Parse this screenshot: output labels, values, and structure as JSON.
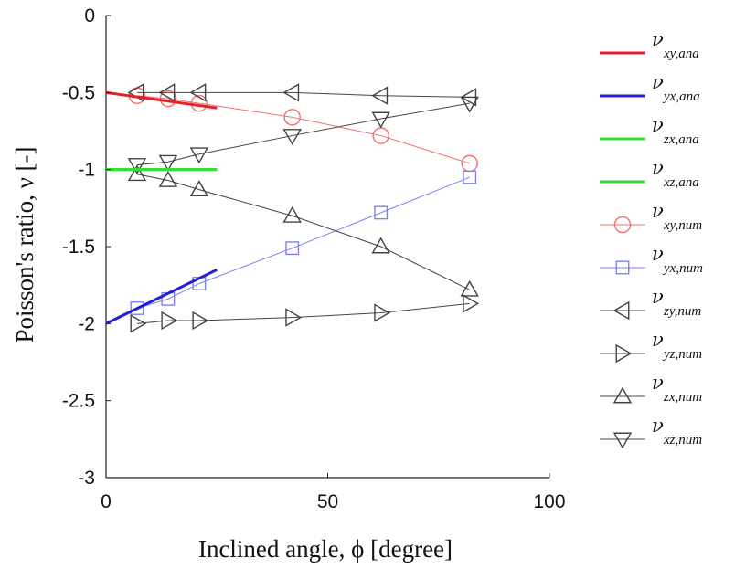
{
  "chart_data": {
    "type": "line",
    "title": "",
    "xlabel": "Inclined angle, ϕ [degree]",
    "ylabel": "Poisson's ratio, ν [-]",
    "xlim": [
      0,
      100
    ],
    "ylim": [
      -3,
      0
    ],
    "xticks": [
      0,
      50,
      100
    ],
    "yticks": [
      0,
      -0.5,
      -1,
      -1.5,
      -2,
      -2.5,
      -3
    ],
    "ytick_labels": [
      "0",
      "-0.5",
      "-1",
      "-1.5",
      "-2",
      "-2.5",
      "-3"
    ],
    "grid": false,
    "legend_position": "right, outside",
    "series": [
      {
        "symbol": "ν",
        "subscript": "xy,ana",
        "color": "#e8202a",
        "marker": "none",
        "line_width": 3,
        "x": [
          0,
          25
        ],
        "y": [
          -0.5,
          -0.6
        ]
      },
      {
        "symbol": "ν",
        "subscript": "yx,ana",
        "color": "#2020d0",
        "marker": "none",
        "line_width": 3,
        "x": [
          0,
          25
        ],
        "y": [
          -2.0,
          -1.65
        ]
      },
      {
        "symbol": "ν",
        "subscript": "zx,ana",
        "color": "#33dd33",
        "marker": "none",
        "line_width": 3,
        "x": [
          0,
          25
        ],
        "y": [
          -1.0,
          -1.0
        ]
      },
      {
        "symbol": "ν",
        "subscript": "xz,ana",
        "color": "#33dd33",
        "marker": "none",
        "line_width": 3,
        "x": [
          0,
          25
        ],
        "y": [
          -1.0,
          -1.0
        ]
      },
      {
        "symbol": "ν",
        "subscript": "xy,num",
        "color": "#f07070",
        "marker": "circle",
        "line_width": 1,
        "x": [
          7,
          14,
          21,
          42,
          62,
          82
        ],
        "y": [
          -0.52,
          -0.54,
          -0.57,
          -0.66,
          -0.78,
          -0.96
        ]
      },
      {
        "symbol": "ν",
        "subscript": "yx,num",
        "color": "#8080f0",
        "marker": "square",
        "line_width": 1,
        "x": [
          7,
          14,
          21,
          42,
          62,
          82
        ],
        "y": [
          -1.9,
          -1.84,
          -1.74,
          -1.51,
          -1.28,
          -1.05
        ]
      },
      {
        "symbol": "ν",
        "subscript": "zy,num",
        "color": "#444444",
        "marker": "triangle-left",
        "line_width": 1,
        "x": [
          7,
          14,
          21,
          42,
          62,
          82
        ],
        "y": [
          -0.5,
          -0.5,
          -0.5,
          -0.5,
          -0.52,
          -0.53
        ]
      },
      {
        "symbol": "ν",
        "subscript": "yz,num",
        "color": "#444444",
        "marker": "triangle-right",
        "line_width": 1,
        "x": [
          7,
          14,
          21,
          42,
          62,
          82
        ],
        "y": [
          -2.0,
          -1.98,
          -1.98,
          -1.96,
          -1.93,
          -1.87
        ]
      },
      {
        "symbol": "ν",
        "subscript": "zx,num",
        "color": "#444444",
        "marker": "triangle-up",
        "line_width": 1,
        "x": [
          7,
          14,
          21,
          42,
          62,
          82
        ],
        "y": [
          -1.03,
          -1.07,
          -1.13,
          -1.3,
          -1.5,
          -1.78
        ]
      },
      {
        "symbol": "ν",
        "subscript": "xz,num",
        "color": "#444444",
        "marker": "triangle-down",
        "line_width": 1,
        "x": [
          7,
          14,
          21,
          42,
          62,
          82
        ],
        "y": [
          -0.97,
          -0.95,
          -0.9,
          -0.78,
          -0.67,
          -0.57
        ]
      }
    ]
  }
}
